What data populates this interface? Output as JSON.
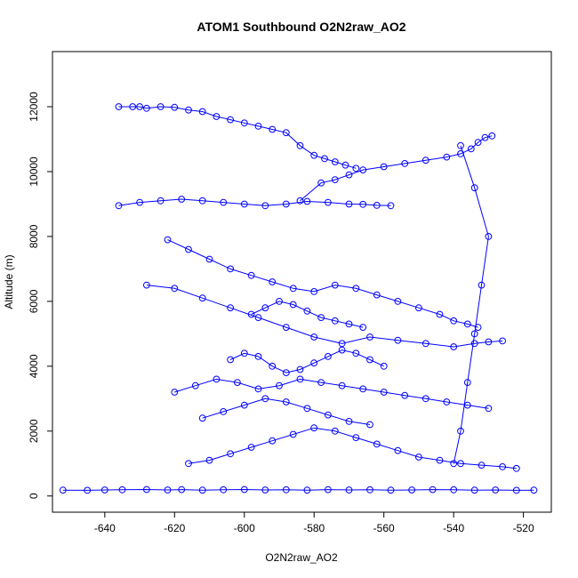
{
  "chart_data": {
    "type": "scatter",
    "title": "ATOM1 Southbound O2N2raw_AO2",
    "xlabel": "O2N2raw_AO2",
    "ylabel": "Altitude (m)",
    "xlim": [
      -655,
      -512
    ],
    "ylim": [
      -500,
      13700
    ],
    "x_ticks": [
      -640,
      -620,
      -600,
      -580,
      -560,
      -540,
      -520
    ],
    "y_ticks": [
      0,
      2000,
      4000,
      6000,
      8000,
      10000,
      12000
    ],
    "x_tick_labels": [
      "-640",
      "-620",
      "-600",
      "-580",
      "-560",
      "-540",
      "-520"
    ],
    "y_tick_labels": [
      "0",
      "2000",
      "4000",
      "6000",
      "8000",
      "10000",
      "12000"
    ],
    "marker": "open-circle",
    "connected": true,
    "grid": false,
    "legend": "none",
    "color": "#0000ff",
    "series": [
      {
        "x": [
          -652,
          -645,
          -640,
          -635,
          -628,
          -622,
          -618,
          -612,
          -606,
          -600,
          -594,
          -588,
          -582,
          -576,
          -570,
          -564,
          -558,
          -552,
          -546,
          -540,
          -534,
          -528,
          -522,
          -517
        ],
        "y": [
          180,
          175,
          185,
          190,
          200,
          185,
          195,
          180,
          190,
          200,
          185,
          190,
          180,
          195,
          185,
          190,
          180,
          185,
          195,
          190,
          180,
          185,
          175,
          180
        ]
      },
      {
        "x": [
          -636,
          -632,
          -630,
          -628,
          -624,
          -620,
          -616,
          -612,
          -608,
          -604,
          -600,
          -596,
          -592,
          -588,
          -584,
          -580,
          -577,
          -574,
          -571,
          -568
        ],
        "y": [
          12000,
          12000,
          12000,
          11950,
          12000,
          11980,
          11900,
          11850,
          11700,
          11600,
          11500,
          11400,
          11300,
          11200,
          10800,
          10500,
          10400,
          10300,
          10200,
          10100
        ]
      },
      {
        "x": [
          -584,
          -578,
          -574,
          -570,
          -566,
          -560,
          -554,
          -548,
          -542,
          -538,
          -535,
          -533,
          -531,
          -529
        ],
        "y": [
          9100,
          9650,
          9750,
          9900,
          10050,
          10150,
          10250,
          10350,
          10450,
          10550,
          10700,
          10900,
          11050,
          11100
        ]
      },
      {
        "x": [
          -636,
          -630,
          -624,
          -618,
          -612,
          -606,
          -600,
          -594,
          -588,
          -582,
          -576,
          -570,
          -566,
          -562,
          -558
        ],
        "y": [
          8950,
          9050,
          9100,
          9150,
          9100,
          9050,
          9000,
          8950,
          9000,
          9080,
          9050,
          9000,
          8990,
          8960,
          8950
        ]
      },
      {
        "x": [
          -622,
          -616,
          -610,
          -604,
          -598,
          -592,
          -586,
          -580,
          -574,
          -568,
          -562,
          -556,
          -550,
          -544,
          -540,
          -536,
          -533
        ],
        "y": [
          7900,
          7600,
          7300,
          7000,
          6800,
          6600,
          6400,
          6300,
          6500,
          6400,
          6200,
          6000,
          5800,
          5600,
          5400,
          5300,
          5200
        ]
      },
      {
        "x": [
          -628,
          -620,
          -612,
          -604,
          -596,
          -588,
          -580,
          -572,
          -564,
          -556,
          -548,
          -540,
          -534,
          -530,
          -526
        ],
        "y": [
          6500,
          6400,
          6100,
          5800,
          5500,
          5200,
          4900,
          4700,
          4900,
          4800,
          4700,
          4600,
          4700,
          4750,
          4780
        ]
      },
      {
        "x": [
          -620,
          -614,
          -608,
          -602,
          -596,
          -590,
          -584,
          -578,
          -572,
          -566,
          -560,
          -554,
          -548,
          -542,
          -536,
          -530
        ],
        "y": [
          3200,
          3400,
          3600,
          3500,
          3300,
          3400,
          3600,
          3500,
          3400,
          3300,
          3200,
          3100,
          3000,
          2900,
          2800,
          2700
        ]
      },
      {
        "x": [
          -616,
          -610,
          -604,
          -598,
          -592,
          -586,
          -580,
          -574,
          -568,
          -562,
          -556,
          -550,
          -544,
          -538,
          -532,
          -526,
          -522
        ],
        "y": [
          1000,
          1100,
          1300,
          1500,
          1700,
          1900,
          2100,
          2000,
          1800,
          1600,
          1400,
          1200,
          1100,
          1000,
          950,
          900,
          850
        ]
      },
      {
        "x": [
          -604,
          -600,
          -596,
          -592,
          -588,
          -584,
          -580,
          -576,
          -572,
          -568,
          -564,
          -560
        ],
        "y": [
          4200,
          4400,
          4300,
          4000,
          3800,
          3900,
          4100,
          4300,
          4500,
          4400,
          4200,
          4000
        ]
      },
      {
        "x": [
          -598,
          -594,
          -590,
          -586,
          -582,
          -578,
          -574,
          -570,
          -566
        ],
        "y": [
          5600,
          5800,
          6000,
          5900,
          5700,
          5500,
          5400,
          5300,
          5200
        ]
      },
      {
        "x": [
          -612,
          -606,
          -600,
          -594,
          -588,
          -582,
          -576,
          -570,
          -564
        ],
        "y": [
          2400,
          2600,
          2800,
          3000,
          2900,
          2700,
          2500,
          2300,
          2200
        ]
      },
      {
        "x": [
          -540,
          -538,
          -536,
          -534,
          -532,
          -530,
          -534,
          -538
        ],
        "y": [
          1000,
          2000,
          3500,
          5000,
          6500,
          8000,
          9500,
          10800
        ]
      }
    ]
  }
}
